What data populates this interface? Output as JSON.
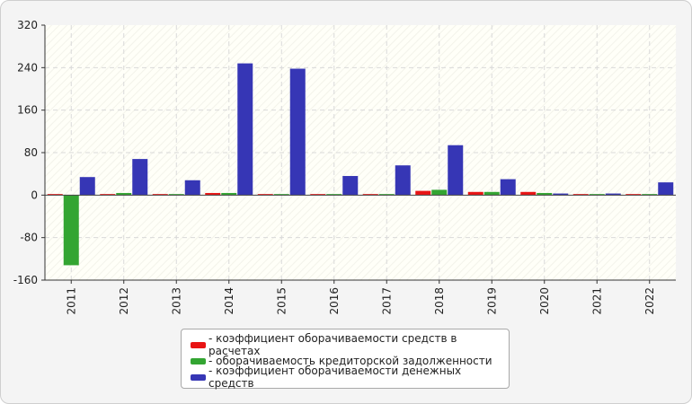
{
  "chart_data": {
    "type": "bar",
    "categories": [
      "2011",
      "2012",
      "2013",
      "2014",
      "2015",
      "2016",
      "2017",
      "2018",
      "2019",
      "2020",
      "2021",
      "2022"
    ],
    "series": [
      {
        "name": "коэффициент оборачиваемости средств в расчетах",
        "color": "#e81414",
        "values": [
          2,
          2,
          2,
          4,
          2,
          2,
          2,
          8,
          6,
          6,
          2,
          2
        ]
      },
      {
        "name": "оборачиваемость кредиторской задолженности",
        "color": "#33a532",
        "values": [
          -132,
          4,
          2,
          4,
          2,
          2,
          2,
          10,
          6,
          4,
          2,
          2
        ]
      },
      {
        "name": "коэффициент оборачиваемости денежных средств",
        "color": "#3636b5",
        "values": [
          34,
          68,
          28,
          248,
          238,
          36,
          56,
          94,
          30,
          3,
          3,
          24
        ]
      }
    ],
    "ylim": [
      -160,
      320
    ],
    "yticks": [
      -160,
      -80,
      0,
      80,
      160,
      240,
      320
    ],
    "grid": true,
    "legend_position": "bottom"
  }
}
